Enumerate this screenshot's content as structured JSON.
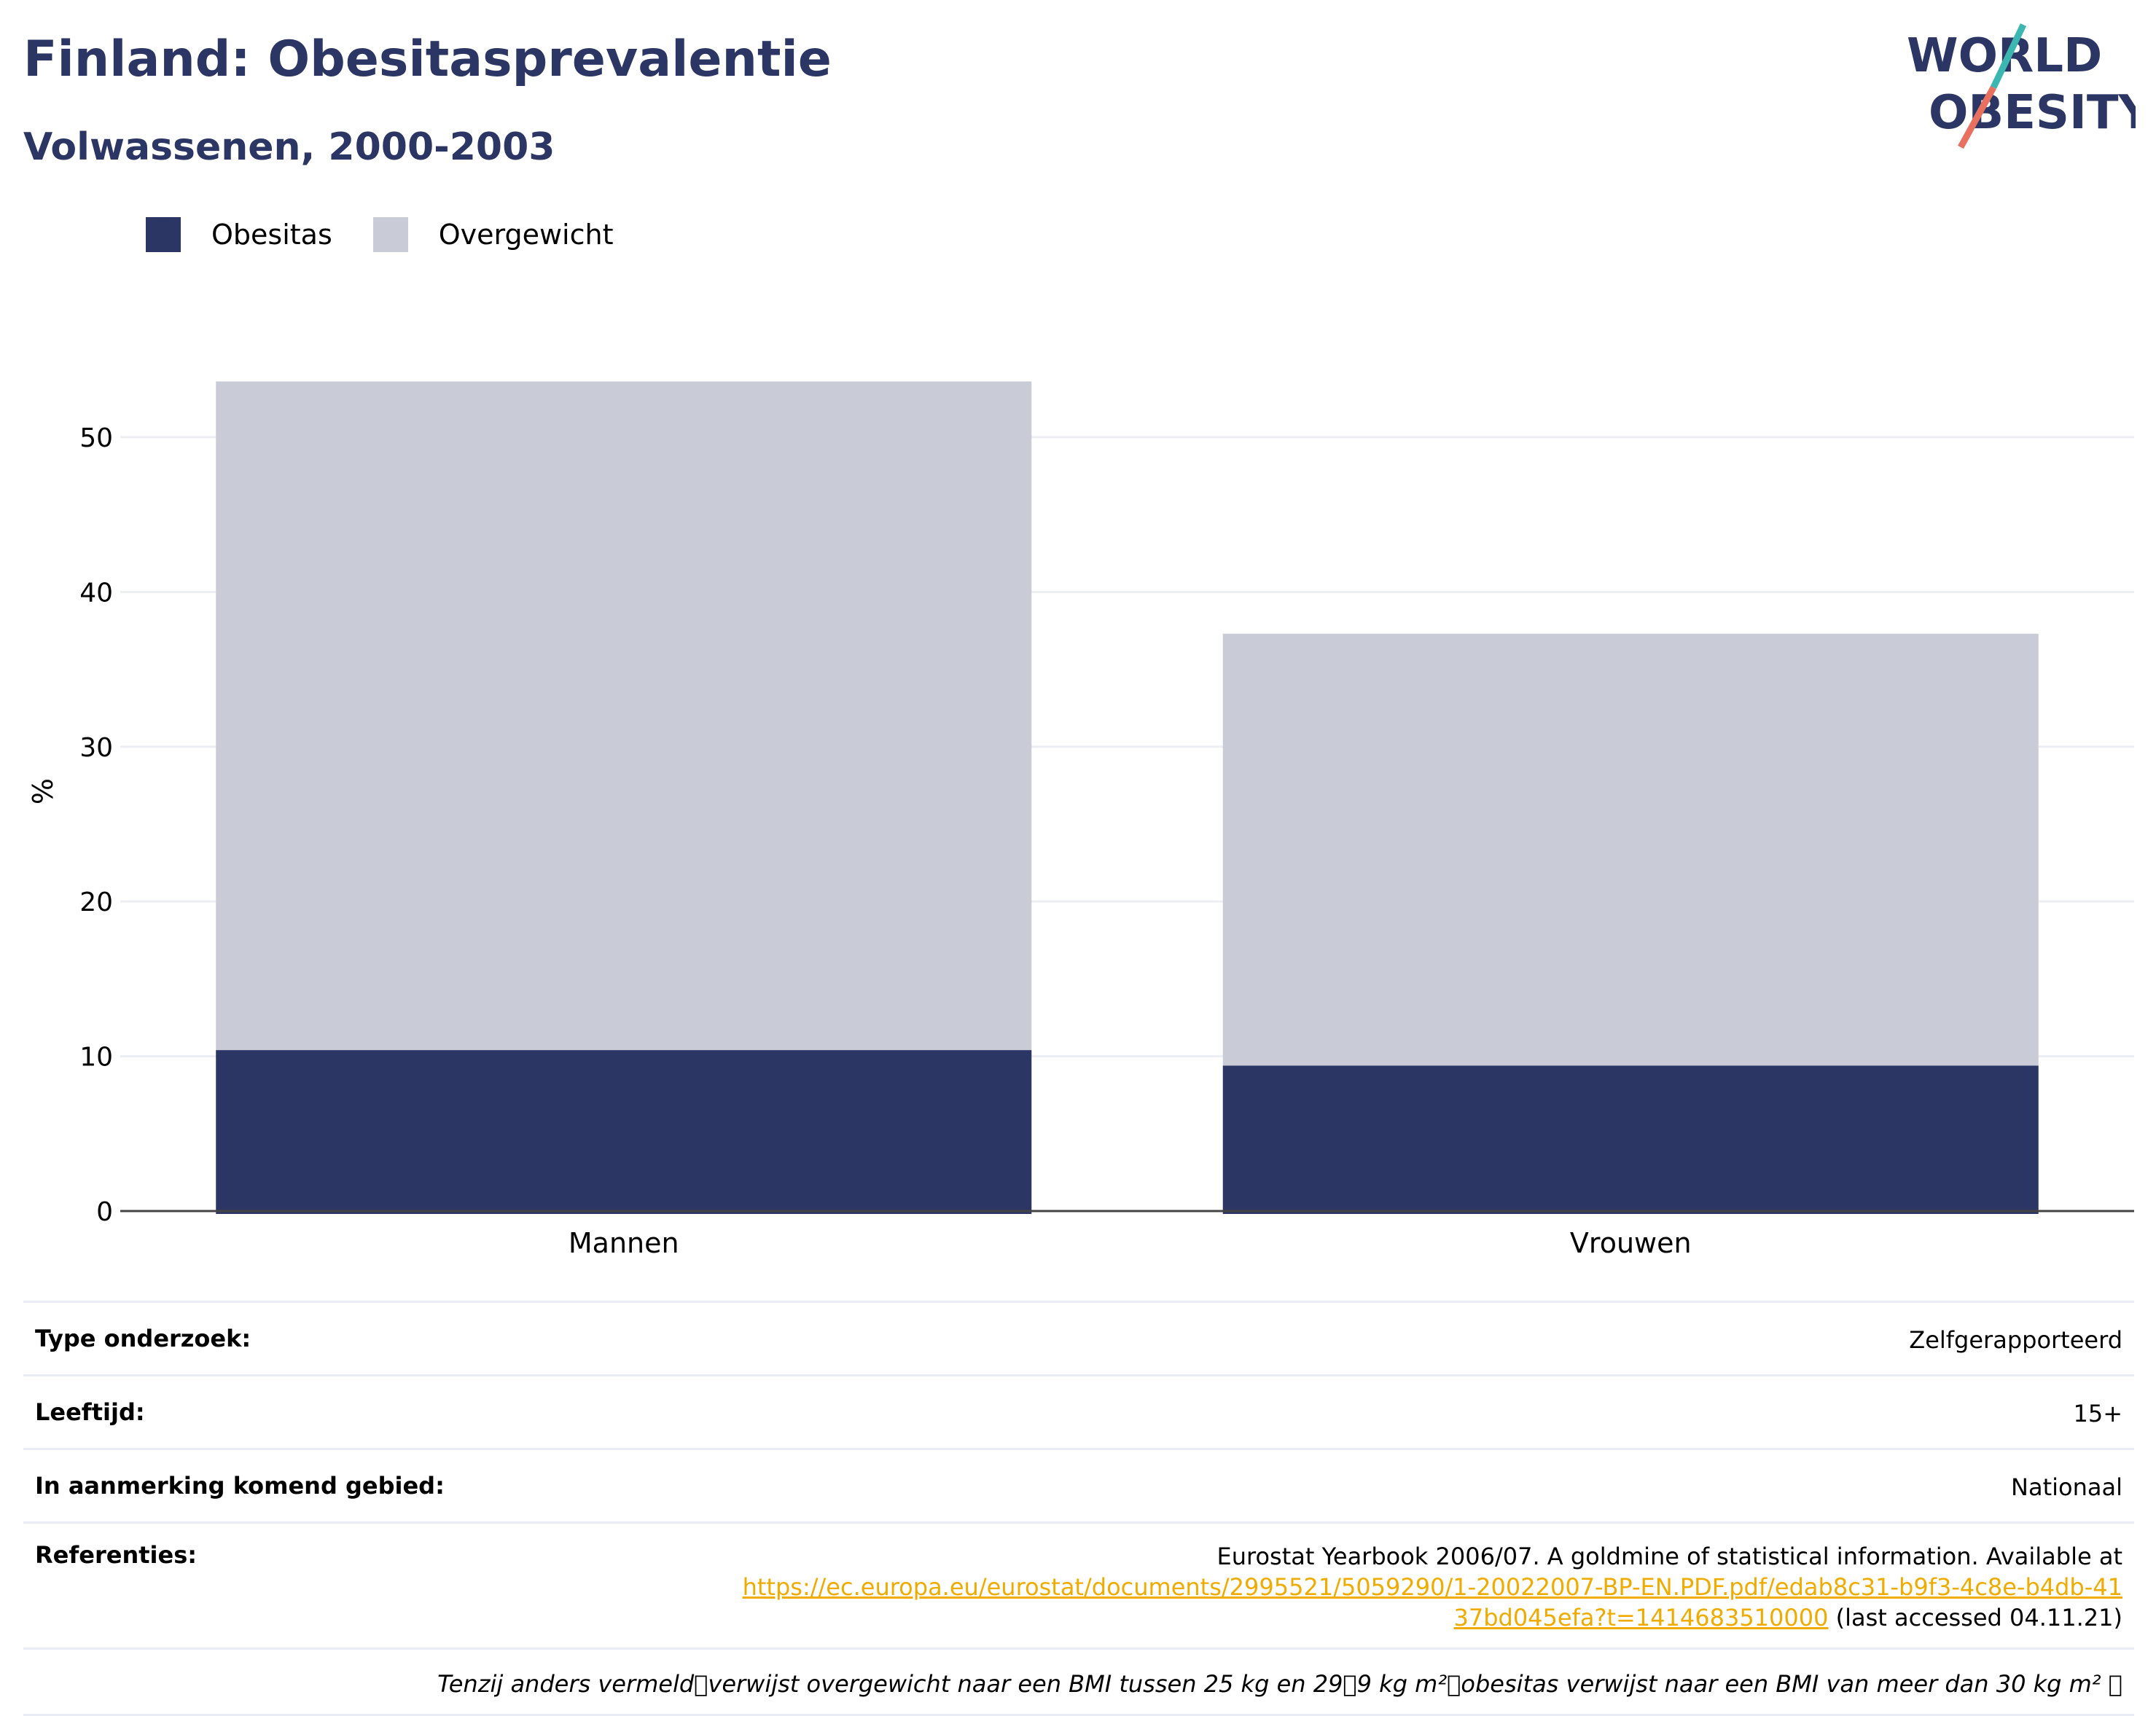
{
  "header": {
    "title": "Finland: Obesitasprevalentie",
    "subtitle": "Volwassenen, 2000-2003"
  },
  "logo": {
    "line1": "WORLD",
    "line2": "OBESITY",
    "accent_teal": "#3bb6b0",
    "accent_coral": "#e8705f",
    "text_color": "#2b3664"
  },
  "legend": [
    {
      "label": "Obesitas",
      "color": "#2b3664"
    },
    {
      "label": "Overgewicht",
      "color": "#c9ccd7"
    }
  ],
  "chart_data": {
    "type": "bar",
    "stacked": true,
    "categories": [
      "Mannen",
      "Vrouwen"
    ],
    "series": [
      {
        "name": "Obesitas",
        "values": [
          10.4,
          9.4
        ],
        "color": "#2b3664"
      },
      {
        "name": "Overgewicht",
        "values": [
          43.2,
          27.9
        ],
        "color": "#c9ccd7"
      }
    ],
    "ylabel": "%",
    "ylim": [
      0,
      58
    ],
    "yticks": [
      0,
      10,
      20,
      30,
      40,
      50
    ],
    "grid": true,
    "legend_position": "top-left"
  },
  "meta": {
    "survey_type_label": "Type onderzoek:",
    "survey_type_value": "Zelfgerapporteerd",
    "age_label": "Leeftijd:",
    "age_value": "15+",
    "area_label": "In aanmerking komend gebied:",
    "area_value": "Nationaal",
    "ref_label": "Referenties:",
    "ref_text": "Eurostat Yearbook 2006/07. A goldmine of statistical information. Available at",
    "ref_link": "https://ec.europa.eu/eurostat/documents/2995521/5059290/1-20022007-BP-EN.PDF.pdf/edab8c31-b9f3-4c8e-b4db-4137bd045efa?t=1414683510000",
    "ref_suffix": " (last accessed 04.11.21)",
    "note": "Tenzij anders vermeld\u0000verwijst overgewicht naar een BMI tussen 25 kg en 29\u00009 kg m²\u0000obesitas verwijst naar een BMI van meer dan 30 kg m² \u0000"
  }
}
